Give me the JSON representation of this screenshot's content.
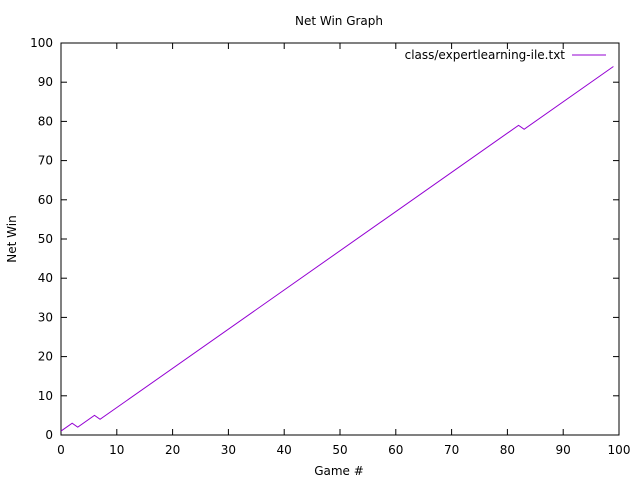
{
  "chart_data": {
    "type": "line",
    "title": "Net Win Graph",
    "xlabel": "Game #",
    "ylabel": "Net Win",
    "xlim": [
      0,
      100
    ],
    "ylim": [
      0,
      100
    ],
    "xticks": [
      0,
      10,
      20,
      30,
      40,
      50,
      60,
      70,
      80,
      90,
      100
    ],
    "yticks": [
      0,
      10,
      20,
      30,
      40,
      50,
      60,
      70,
      80,
      90,
      100
    ],
    "grid": false,
    "legend_position": "top-right",
    "series": [
      {
        "name": "class/expertlearning-ile.txt",
        "color": "#9400d3",
        "points": [
          [
            0,
            1
          ],
          [
            2,
            3
          ],
          [
            3,
            2
          ],
          [
            6,
            5
          ],
          [
            7,
            4
          ],
          [
            82,
            79
          ],
          [
            83,
            78
          ],
          [
            99,
            94
          ]
        ]
      }
    ]
  }
}
